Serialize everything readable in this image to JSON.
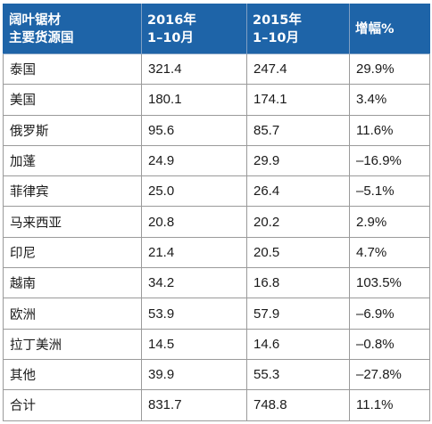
{
  "table": {
    "headers": [
      [
        "阔叶锯材",
        "主要货源国"
      ],
      [
        "2016年",
        "1–10月"
      ],
      [
        "2015年",
        "1–10月"
      ],
      [
        "增幅%"
      ]
    ],
    "rows": [
      [
        "泰国",
        "321.4",
        "247.4",
        "29.9%"
      ],
      [
        "美国",
        "180.1",
        "174.1",
        "3.4%"
      ],
      [
        "俄罗斯",
        "95.6",
        "85.7",
        "11.6%"
      ],
      [
        "加蓬",
        "24.9",
        "29.9",
        "–16.9%"
      ],
      [
        "菲律宾",
        "25.0",
        "26.4",
        "–5.1%"
      ],
      [
        "马来西亚",
        "20.8",
        "20.2",
        "2.9%"
      ],
      [
        "印尼",
        "21.4",
        "20.5",
        "4.7%"
      ],
      [
        "越南",
        "34.2",
        "16.8",
        "103.5%"
      ],
      [
        "欧洲",
        "53.9",
        "57.9",
        "–6.9%"
      ],
      [
        "拉丁美洲",
        "14.5",
        "14.6",
        "–0.8%"
      ],
      [
        "其他",
        "39.9",
        "55.3",
        "–27.8%"
      ],
      [
        "合计",
        "831.7",
        "748.8",
        "11.1%"
      ]
    ]
  },
  "colors": {
    "header_background": "#1e64a8",
    "header_text": "#ffffff",
    "border": "#9a9a9a",
    "cell_text": "#1a1a1a"
  }
}
